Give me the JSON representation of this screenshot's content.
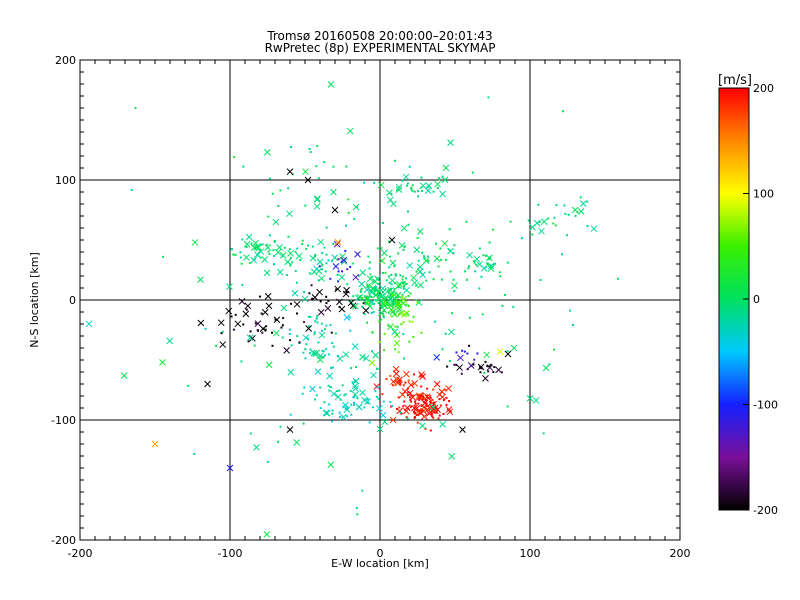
{
  "chart_data": {
    "type": "scatter",
    "title": "Tromsø 20160508 20:00:00–20:01:43",
    "subtitle": "RwPretec (8p) EXPERIMENTAL SKYMAP",
    "xlabel": "E-W location [km]",
    "ylabel": "N-S location [km]",
    "xlim": [
      -200,
      200
    ],
    "ylim": [
      -200,
      200
    ],
    "x_ticks": [
      "-200",
      "-100",
      "0",
      "100",
      "200"
    ],
    "y_ticks": [
      "-200",
      "-100",
      "0",
      "100",
      "200"
    ],
    "grid": true,
    "colorbar": {
      "label": "[m/s]",
      "range": [
        -200,
        200
      ],
      "ticks": [
        "-200",
        "-100",
        "0",
        "100",
        "200"
      ],
      "colormap": "rainbow"
    },
    "clusters": [
      {
        "cx": 2,
        "cy": 5,
        "sx": 9,
        "sy": 9,
        "n": 140,
        "v": 0
      },
      {
        "cx": 12,
        "cy": -18,
        "sx": 8,
        "sy": 14,
        "n": 45,
        "v": 55
      },
      {
        "cx": 30,
        "cy": -88,
        "sx": 9,
        "sy": 7,
        "n": 110,
        "v": 195
      },
      {
        "cx": 18,
        "cy": -72,
        "sx": 10,
        "sy": 8,
        "n": 35,
        "v": 185
      },
      {
        "cx": -20,
        "cy": -85,
        "sx": 14,
        "sy": 10,
        "n": 70,
        "v": -30
      },
      {
        "cx": -38,
        "cy": -40,
        "sx": 12,
        "sy": 20,
        "n": 55,
        "v": -25
      },
      {
        "cx": -80,
        "cy": 40,
        "sx": 12,
        "sy": 5,
        "n": 45,
        "v": 0
      },
      {
        "cx": -45,
        "cy": 32,
        "sx": 14,
        "sy": 8,
        "n": 40,
        "v": -10
      },
      {
        "cx": 25,
        "cy": 30,
        "sx": 20,
        "sy": 14,
        "n": 60,
        "v": 0
      },
      {
        "cx": 25,
        "cy": 95,
        "sx": 8,
        "sy": 5,
        "n": 25,
        "v": -5
      },
      {
        "cx": 68,
        "cy": 30,
        "sx": 5,
        "sy": 5,
        "n": 25,
        "v": -5
      },
      {
        "cx": 120,
        "cy": 70,
        "sx": 15,
        "sy": 10,
        "n": 25,
        "v": -3
      },
      {
        "cx": -75,
        "cy": -20,
        "sx": 18,
        "sy": 10,
        "n": 45,
        "v": -200
      },
      {
        "cx": -30,
        "cy": 0,
        "sx": 15,
        "sy": 8,
        "n": 25,
        "v": -200
      },
      {
        "cx": 65,
        "cy": -55,
        "sx": 10,
        "sy": 6,
        "n": 25,
        "v": -190
      },
      {
        "cx": -25,
        "cy": 25,
        "sx": 10,
        "sy": 8,
        "n": 15,
        "v": -120
      },
      {
        "cx": 55,
        "cy": -48,
        "sx": 8,
        "sy": 5,
        "n": 10,
        "v": -110
      },
      {
        "cx": 0,
        "cy": 0,
        "sx": 75,
        "sy": 75,
        "n": 150,
        "v": -5
      },
      {
        "cx": -40,
        "cy": 110,
        "sx": 25,
        "sy": 20,
        "n": 30,
        "v": -5
      }
    ],
    "highlighted_points": [
      {
        "x": -150,
        "y": -120,
        "v": 140
      },
      {
        "x": -100,
        "y": -140,
        "v": -105
      },
      {
        "x": -145,
        "y": -52,
        "v": 20
      },
      {
        "x": -60,
        "y": 107,
        "v": -200
      },
      {
        "x": -48,
        "y": 100,
        "v": -200
      },
      {
        "x": -30,
        "y": 75,
        "v": -200
      },
      {
        "x": 55,
        "y": -108,
        "v": -200
      },
      {
        "x": -60,
        "y": -108,
        "v": -200
      },
      {
        "x": -28,
        "y": 48,
        "v": 150
      },
      {
        "x": 80,
        "y": -43,
        "v": 90
      },
      {
        "x": 100,
        "y": -82,
        "v": -10
      },
      {
        "x": 8,
        "y": 50,
        "v": -200
      },
      {
        "x": -115,
        "y": -70,
        "v": -200
      }
    ]
  }
}
